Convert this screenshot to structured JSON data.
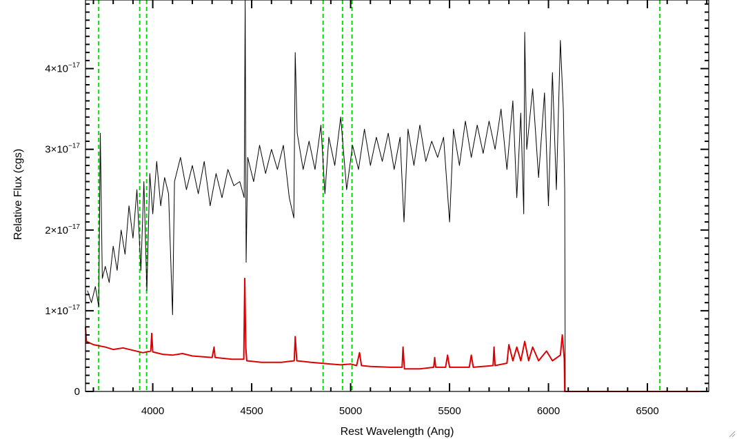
{
  "chart_data": {
    "type": "line",
    "xlabel": "Rest Wavelength (Ang)",
    "ylabel": "Relative Flux (cgs)",
    "xlim": [
      3660,
      6810
    ],
    "ylim": [
      0,
      4.85e-17
    ],
    "x_ticks": [
      {
        "value": 4000,
        "label": "4000"
      },
      {
        "value": 4500,
        "label": "4500"
      },
      {
        "value": 5000,
        "label": "5000"
      },
      {
        "value": 5500,
        "label": "5500"
      },
      {
        "value": 6000,
        "label": "6000"
      },
      {
        "value": 6500,
        "label": "6500"
      }
    ],
    "y_ticks": [
      {
        "value": 0,
        "mantissa": "0",
        "exponent": ""
      },
      {
        "value": 1e-17,
        "mantissa": "1×10",
        "exponent": "−17"
      },
      {
        "value": 2e-17,
        "mantissa": "2×10",
        "exponent": "−17"
      },
      {
        "value": 3e-17,
        "mantissa": "3×10",
        "exponent": "−17"
      },
      {
        "value": 4e-17,
        "mantissa": "4×10",
        "exponent": "−17"
      }
    ],
    "grid": false,
    "legend": "none",
    "reference_lines": {
      "color": "#00dd00",
      "style": "dashed",
      "x": [
        3727,
        3934,
        3969,
        4861,
        4959,
        5007,
        6563
      ]
    },
    "series": [
      {
        "color": "#000000",
        "points": [
          [
            3670,
            1.25e-17
          ],
          [
            3690,
            1.1e-17
          ],
          [
            3710,
            1.3e-17
          ],
          [
            3727,
            1.05e-17
          ],
          [
            3735,
            3.2e-17
          ],
          [
            3745,
            1.4e-17
          ],
          [
            3760,
            1.55e-17
          ],
          [
            3780,
            1.35e-17
          ],
          [
            3800,
            1.8e-17
          ],
          [
            3820,
            1.5e-17
          ],
          [
            3840,
            2e-17
          ],
          [
            3860,
            1.7e-17
          ],
          [
            3880,
            2.3e-17
          ],
          [
            3900,
            1.9e-17
          ],
          [
            3920,
            2.5e-17
          ],
          [
            3940,
            1.5e-17
          ],
          [
            3955,
            2.6e-17
          ],
          [
            3970,
            1.25e-17
          ],
          [
            3985,
            2.7e-17
          ],
          [
            4000,
            2.2e-17
          ],
          [
            4020,
            2.85e-17
          ],
          [
            4040,
            2.3e-17
          ],
          [
            4060,
            2.65e-17
          ],
          [
            4080,
            2.45e-17
          ],
          [
            4100,
            9.5e-18
          ],
          [
            4110,
            2.6e-17
          ],
          [
            4140,
            2.9e-17
          ],
          [
            4170,
            2.5e-17
          ],
          [
            4200,
            2.8e-17
          ],
          [
            4230,
            2.45e-17
          ],
          [
            4260,
            2.85e-17
          ],
          [
            4290,
            2.3e-17
          ],
          [
            4320,
            2.7e-17
          ],
          [
            4350,
            2.4e-17
          ],
          [
            4380,
            2.75e-17
          ],
          [
            4410,
            2.55e-17
          ],
          [
            4440,
            2.6e-17
          ],
          [
            4462,
            2.4e-17
          ],
          [
            4467,
            4.85e-17
          ],
          [
            4472,
            1.6e-17
          ],
          [
            4480,
            2.9e-17
          ],
          [
            4510,
            2.6e-17
          ],
          [
            4540,
            3.05e-17
          ],
          [
            4570,
            2.7e-17
          ],
          [
            4600,
            3e-17
          ],
          [
            4630,
            2.75e-17
          ],
          [
            4660,
            3.05e-17
          ],
          [
            4690,
            2.4e-17
          ],
          [
            4713,
            2.15e-17
          ],
          [
            4720,
            4.2e-17
          ],
          [
            4730,
            3.2e-17
          ],
          [
            4760,
            2.75e-17
          ],
          [
            4790,
            3.1e-17
          ],
          [
            4820,
            2.75e-17
          ],
          [
            4850,
            3.3e-17
          ],
          [
            4870,
            2.45e-17
          ],
          [
            4890,
            3.15e-17
          ],
          [
            4920,
            2.8e-17
          ],
          [
            4950,
            3.4e-17
          ],
          [
            4980,
            2.5e-17
          ],
          [
            5010,
            3.05e-17
          ],
          [
            5040,
            2.75e-17
          ],
          [
            5070,
            3.25e-17
          ],
          [
            5100,
            2.8e-17
          ],
          [
            5130,
            3.15e-17
          ],
          [
            5160,
            2.85e-17
          ],
          [
            5190,
            3.2e-17
          ],
          [
            5220,
            2.75e-17
          ],
          [
            5250,
            3.15e-17
          ],
          [
            5270,
            2.1e-17
          ],
          [
            5290,
            3.25e-17
          ],
          [
            5320,
            2.8e-17
          ],
          [
            5350,
            3.3e-17
          ],
          [
            5380,
            2.85e-17
          ],
          [
            5410,
            3.1e-17
          ],
          [
            5440,
            2.9e-17
          ],
          [
            5470,
            3.15e-17
          ],
          [
            5500,
            2.1e-17
          ],
          [
            5520,
            3.25e-17
          ],
          [
            5550,
            2.8e-17
          ],
          [
            5580,
            3.35e-17
          ],
          [
            5610,
            2.9e-17
          ],
          [
            5640,
            3.3e-17
          ],
          [
            5670,
            2.95e-17
          ],
          [
            5700,
            3.35e-17
          ],
          [
            5730,
            3e-17
          ],
          [
            5760,
            3.5e-17
          ],
          [
            5790,
            2.75e-17
          ],
          [
            5820,
            3.6e-17
          ],
          [
            5840,
            2.4e-17
          ],
          [
            5860,
            3.45e-17
          ],
          [
            5875,
            2.2e-17
          ],
          [
            5880,
            4.45e-17
          ],
          [
            5890,
            3e-17
          ],
          [
            5920,
            3.75e-17
          ],
          [
            5950,
            2.65e-17
          ],
          [
            5980,
            3.7e-17
          ],
          [
            6000,
            2.3e-17
          ],
          [
            6020,
            3.95e-17
          ],
          [
            6040,
            2.5e-17
          ],
          [
            6060,
            4.35e-17
          ],
          [
            6075,
            3.5e-17
          ],
          [
            6082,
            2.5e-17
          ],
          [
            6085,
            0
          ]
        ]
      },
      {
        "color": "#dd0000",
        "points": [
          [
            3660,
            8e-18
          ],
          [
            3665,
            6.2e-18
          ],
          [
            3700,
            5.8e-18
          ],
          [
            3760,
            5.5e-18
          ],
          [
            3800,
            5.2e-18
          ],
          [
            3850,
            5.4e-18
          ],
          [
            3900,
            5.1e-18
          ],
          [
            3950,
            4.8e-18
          ],
          [
            3990,
            5e-18
          ],
          [
            3995,
            7.2e-18
          ],
          [
            4000,
            4.9e-18
          ],
          [
            4050,
            4.6e-18
          ],
          [
            4100,
            4.5e-18
          ],
          [
            4150,
            4.7e-18
          ],
          [
            4200,
            4.4e-18
          ],
          [
            4300,
            4.2e-18
          ],
          [
            4310,
            5.5e-18
          ],
          [
            4315,
            4.2e-18
          ],
          [
            4400,
            4e-18
          ],
          [
            4460,
            4e-18
          ],
          [
            4465,
            1.4e-17
          ],
          [
            4470,
            5.5e-18
          ],
          [
            4475,
            3.8e-18
          ],
          [
            4550,
            3.6e-18
          ],
          [
            4650,
            3.6e-18
          ],
          [
            4715,
            3.8e-18
          ],
          [
            4720,
            6.8e-18
          ],
          [
            4728,
            3.8e-18
          ],
          [
            4800,
            3.6e-18
          ],
          [
            4900,
            3.4e-18
          ],
          [
            4950,
            3.3e-18
          ],
          [
            5000,
            3.4e-18
          ],
          [
            5030,
            3.2e-18
          ],
          [
            5045,
            4.8e-18
          ],
          [
            5055,
            3.2e-18
          ],
          [
            5100,
            3.1e-18
          ],
          [
            5200,
            3e-18
          ],
          [
            5260,
            3e-18
          ],
          [
            5265,
            5.5e-18
          ],
          [
            5272,
            2.8e-18
          ],
          [
            5350,
            2.8e-18
          ],
          [
            5420,
            3e-18
          ],
          [
            5425,
            4.2e-18
          ],
          [
            5430,
            3e-18
          ],
          [
            5480,
            3e-18
          ],
          [
            5490,
            4.5e-18
          ],
          [
            5500,
            3e-18
          ],
          [
            5600,
            3e-18
          ],
          [
            5610,
            4.5e-18
          ],
          [
            5620,
            3e-18
          ],
          [
            5720,
            3.2e-18
          ],
          [
            5725,
            5.5e-18
          ],
          [
            5730,
            3.2e-18
          ],
          [
            5790,
            3.5e-18
          ],
          [
            5800,
            5.8e-18
          ],
          [
            5820,
            3.8e-18
          ],
          [
            5840,
            5.5e-18
          ],
          [
            5860,
            3.8e-18
          ],
          [
            5880,
            6.2e-18
          ],
          [
            5900,
            3.8e-18
          ],
          [
            5920,
            5.5e-18
          ],
          [
            5950,
            3.8e-18
          ],
          [
            5990,
            5e-18
          ],
          [
            6020,
            3.8e-18
          ],
          [
            6060,
            4.5e-18
          ],
          [
            6070,
            7e-18
          ],
          [
            6080,
            4e-18
          ],
          [
            6082,
            0
          ],
          [
            6810,
            0
          ]
        ]
      }
    ]
  }
}
